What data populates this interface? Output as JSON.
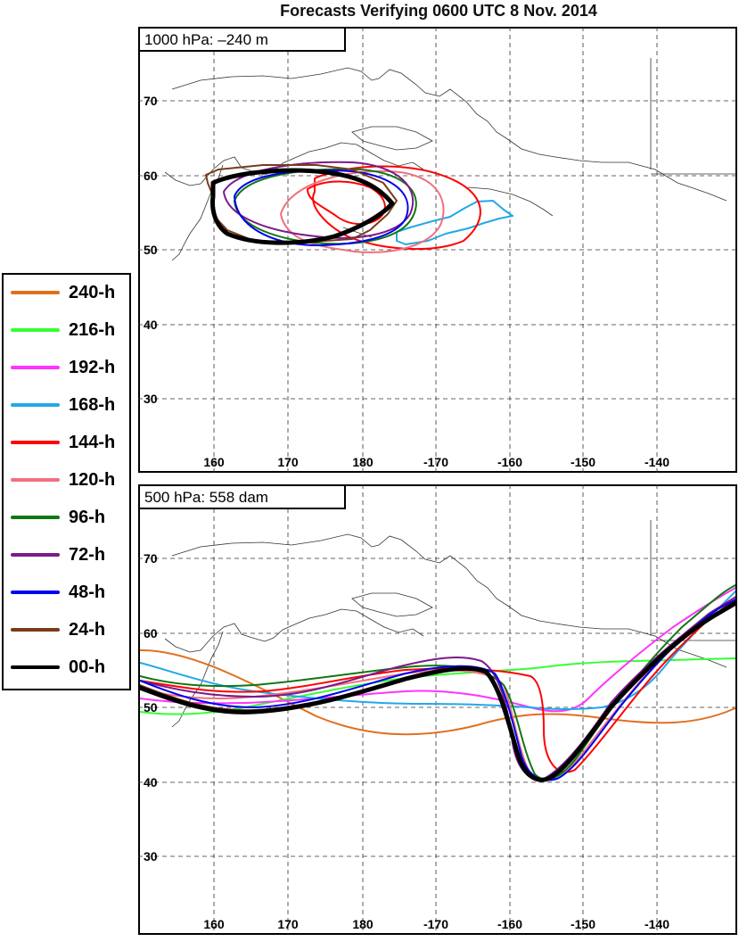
{
  "title": "Forecasts Verifying 0600 UTC 8 Nov. 2014",
  "legend": [
    {
      "label": "240-h",
      "color": "#e07020"
    },
    {
      "label": "216-h",
      "color": "#33ff33"
    },
    {
      "label": "192-h",
      "color": "#ff33ff"
    },
    {
      "label": "168-h",
      "color": "#22a8e8"
    },
    {
      "label": "144-h",
      "color": "#ff0000"
    },
    {
      "label": "120-h",
      "color": "#f07080"
    },
    {
      "label": "96-h",
      "color": "#117711"
    },
    {
      "label": "72-h",
      "color": "#7a1a8a"
    },
    {
      "label": "48-h",
      "color": "#0000ee"
    },
    {
      "label": "24-h",
      "color": "#7a3b1a"
    },
    {
      "label": "00-h",
      "color": "#000000"
    }
  ],
  "panels": {
    "top": {
      "label": "1000 hPa: –240 m"
    },
    "bottom": {
      "label": "500 hPa: 558 dam"
    }
  },
  "axes": {
    "lon_ticks": [
      "160",
      "170",
      "180",
      "-170",
      "-160",
      "-150",
      "-140"
    ],
    "lat_ticks": [
      "70",
      "60",
      "50",
      "40",
      "30"
    ]
  }
}
